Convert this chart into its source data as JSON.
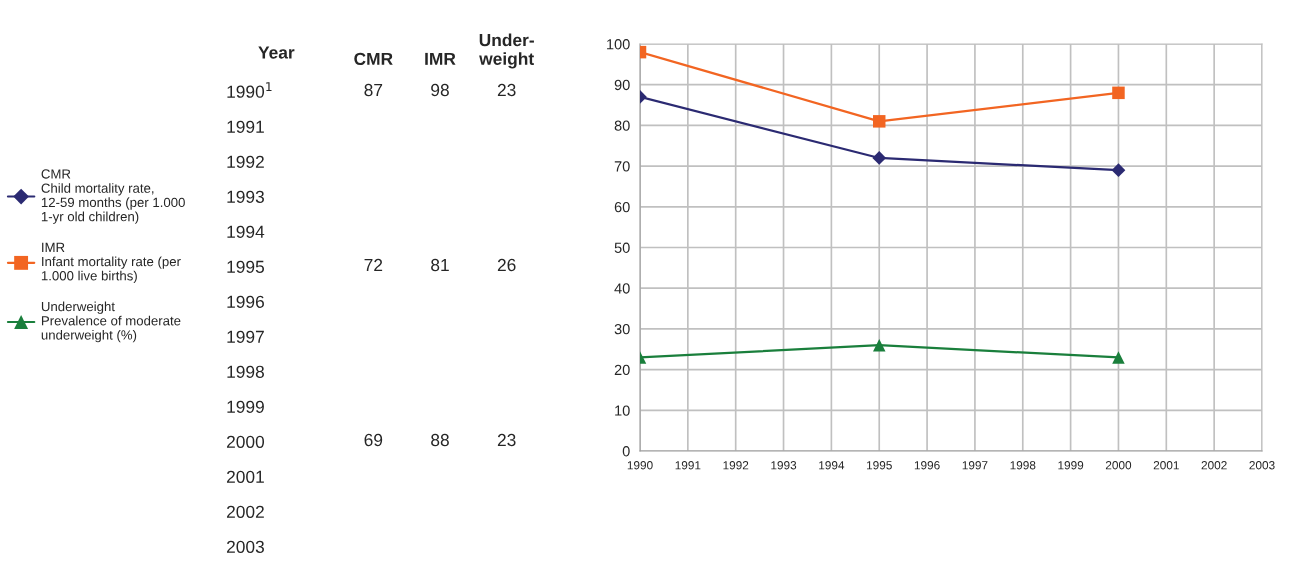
{
  "chart_data": [
    {
      "type": "heatmap",
      "ylabel": "Year",
      "data_labels": true,
      "categories": [
        "CMR",
        "IMR",
        "Under-\nweight"
      ],
      "y_categories": [
        "1990$^{1}$",
        "1991",
        "1992",
        "1993",
        "1994",
        "1995",
        "1996",
        "1997",
        "1998",
        "1999",
        "2000",
        "2001",
        "2002",
        "2003"
      ],
      "cells": [
        [
          87,
          98,
          23
        ],
        [
          null,
          null,
          null
        ],
        [
          null,
          null,
          null
        ],
        [
          null,
          null,
          null
        ],
        [
          null,
          null,
          null
        ],
        [
          72,
          81,
          26
        ],
        [
          null,
          null,
          null
        ],
        [
          null,
          null,
          null
        ],
        [
          null,
          null,
          null
        ],
        [
          null,
          null,
          null
        ],
        [
          69,
          88,
          23
        ],
        [
          null,
          null,
          null
        ],
        [
          null,
          null,
          null
        ],
        [
          null,
          null,
          null
        ]
      ]
    },
    {
      "type": "line",
      "x": [
        1990,
        1995,
        2000
      ],
      "series": [
        {
          "name": "CMR\nChild mortality rate,\n12-59 months (per 1.000\n1-yr old children)",
          "color": "#2b2a72",
          "marker": "diamond",
          "values": [
            87,
            72,
            69
          ]
        },
        {
          "name": "IMR\nInfant mortality rate (per\n1.000 live births)",
          "color": "#f26522",
          "marker": "square",
          "values": [
            98,
            81,
            88
          ]
        },
        {
          "name": "Underweight\nPrevalence of moderate\nunderweight (%)",
          "color": "#1a7f3c",
          "marker": "triangle",
          "values": [
            23,
            26,
            23
          ]
        }
      ],
      "xlim": [
        1990,
        2003
      ],
      "xticks": [
        1990,
        1991,
        1992,
        1993,
        1994,
        1995,
        1996,
        1997,
        1998,
        1999,
        2000,
        2001,
        2002,
        2003
      ],
      "ylim": [
        0,
        100
      ],
      "yticks": [
        0,
        10,
        20,
        30,
        40,
        50,
        60,
        70,
        80,
        90,
        100
      ],
      "grid": true,
      "legend": "left"
    }
  ]
}
